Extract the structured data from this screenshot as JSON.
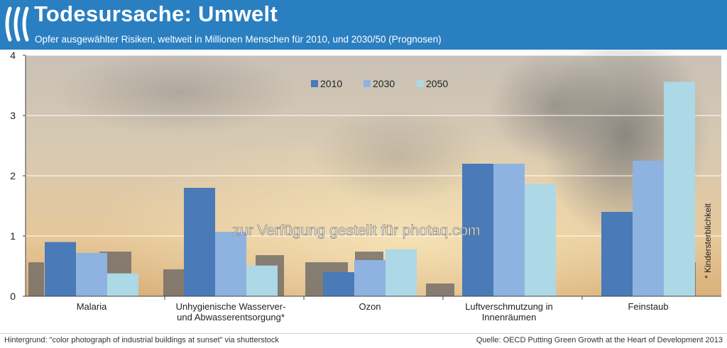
{
  "header": {
    "title": "Todesursache: Umwelt",
    "subtitle": "Opfer ausgewählter Risiken, weltweit in Millionen Menschen für 2010, und 2030/50 (Prognosen)"
  },
  "footer": {
    "left": "Hintergrund: \"color photograph of industrial buildings at sunset\" via shutterstock",
    "right": "Quelle: OECD Putting Green Growth at the Heart of Development 2013"
  },
  "watermark": "zur Verfügung gestellt für photaq.com",
  "side_note": "* Kindersterblichkeit",
  "colors": {
    "header_bg": "#2a7fc1",
    "s2010": "#4a7ab8",
    "s2030": "#8eb3e0",
    "s2050": "#add8e6"
  },
  "chart_data": {
    "type": "bar",
    "title": "Todesursache: Umwelt",
    "subtitle": "Opfer ausgewählter Risiken, weltweit in Millionen Menschen für 2010, und 2030/50 (Prognosen)",
    "categories": [
      [
        "Malaria"
      ],
      [
        "Unhygienische Wasserver-",
        "und Abwasserentsorgung*"
      ],
      [
        "Ozon"
      ],
      [
        "Luftverschmutzung in",
        "Innenräumen"
      ],
      [
        "Feinstaub"
      ]
    ],
    "series": [
      {
        "name": "2010",
        "color": "#4a7ab8",
        "values": [
          0.9,
          1.8,
          0.4,
          2.2,
          1.4
        ]
      },
      {
        "name": "2030",
        "color": "#8eb3e0",
        "values": [
          0.72,
          1.07,
          0.6,
          2.2,
          2.25
        ]
      },
      {
        "name": "2050",
        "color": "#add8e6",
        "values": [
          0.38,
          0.51,
          0.78,
          1.86,
          3.56
        ]
      }
    ],
    "ylim": [
      0,
      4
    ],
    "yticks": [
      "0",
      "1",
      "2",
      "3",
      "4"
    ],
    "grid": true,
    "legend": "top-center"
  }
}
